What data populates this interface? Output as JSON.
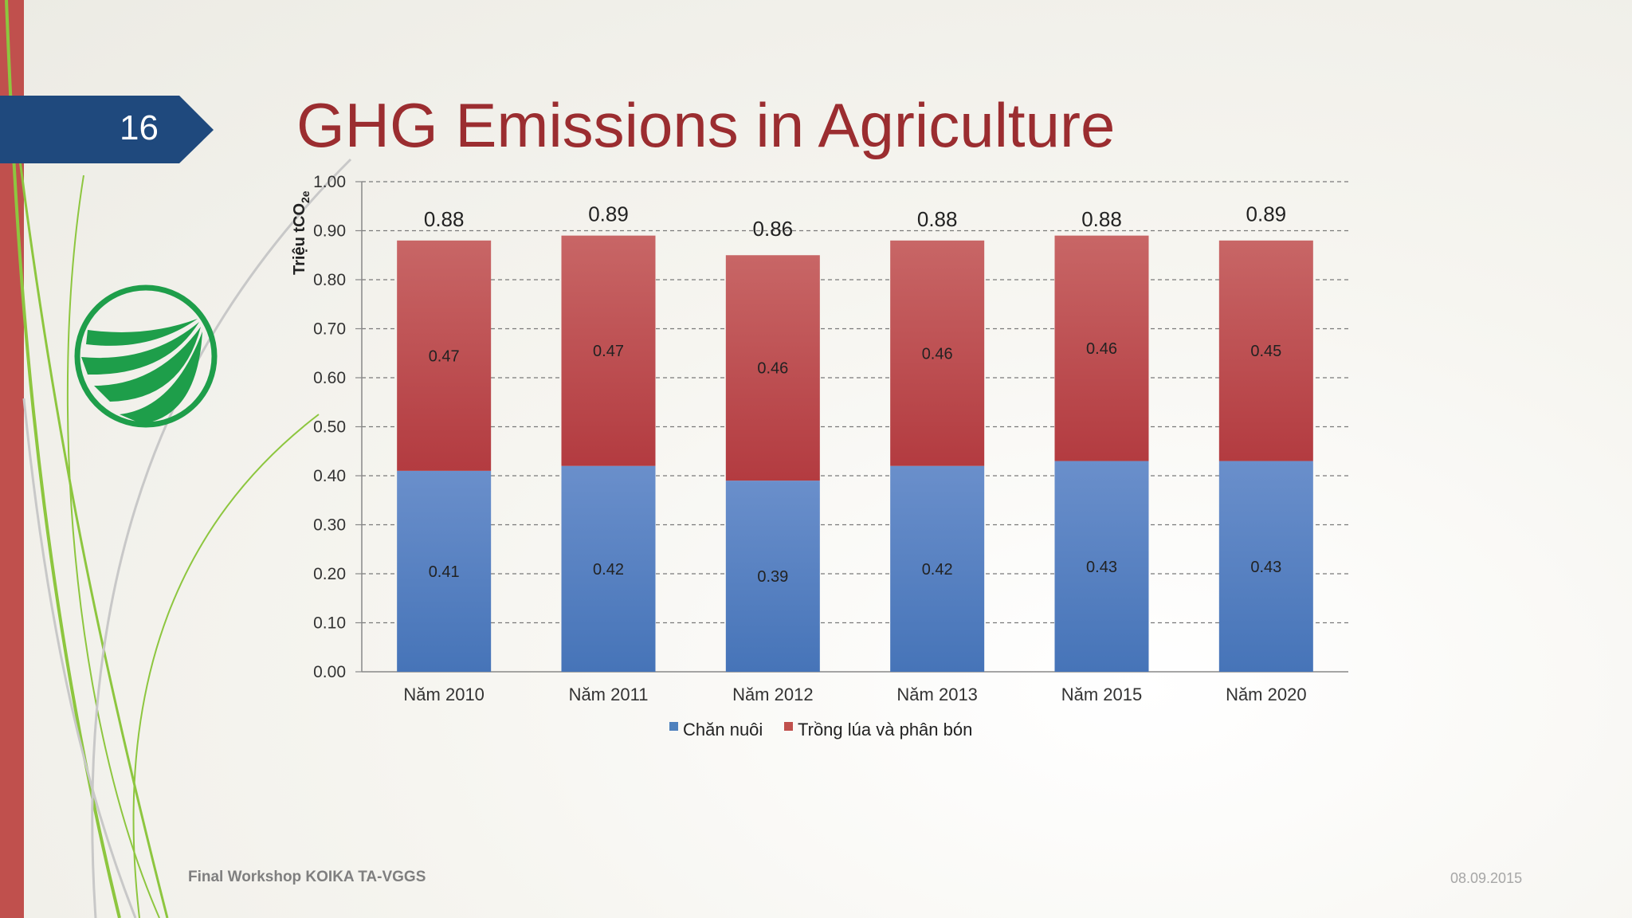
{
  "slide": {
    "number": "16",
    "title": "GHG Emissions in Agriculture",
    "footer_left": "Final Workshop KOIKA TA-VGGS",
    "footer_right": "08.09.2015"
  },
  "colors": {
    "accent_red": "#c0504d",
    "title_color": "#9b2d30",
    "tab_blue": "#1f497d",
    "series_blue": "#4f81bd",
    "series_red": "#c0504d",
    "logo_green": "#1e9e4a"
  },
  "chart_data": {
    "type": "bar",
    "stacked": true,
    "ylabel": "Triệu tCO2e",
    "ylabel_main": "Triệu tCO",
    "ylabel_sub": "2e",
    "ylim": [
      0,
      1.0
    ],
    "ytick_step": 0.1,
    "yticks": [
      "0.00",
      "0.10",
      "0.20",
      "0.30",
      "0.40",
      "0.50",
      "0.60",
      "0.70",
      "0.80",
      "0.90",
      "1.00"
    ],
    "grid": true,
    "legend_position": "bottom",
    "categories": [
      "Năm 2010",
      "Năm 2011",
      "Năm 2012",
      "Năm 2013",
      "Năm 2015",
      "Năm 2020"
    ],
    "series": [
      {
        "name": "Chăn nuôi",
        "values": [
          0.41,
          0.42,
          0.39,
          0.42,
          0.43,
          0.43
        ],
        "labels": [
          "0.41",
          "0.42",
          "0.39",
          "0.42",
          "0.43",
          "0.43"
        ]
      },
      {
        "name": "Trồng lúa và phân bón",
        "values": [
          0.47,
          0.47,
          0.46,
          0.46,
          0.46,
          0.45
        ],
        "labels": [
          "0.47",
          "0.47",
          "0.46",
          "0.46",
          "0.46",
          "0.45"
        ]
      }
    ],
    "totals": [
      0.88,
      0.89,
      0.86,
      0.88,
      0.88,
      0.89
    ],
    "total_labels": [
      "0.88",
      "0.89",
      "0.86",
      "0.88",
      "0.88",
      "0.89"
    ]
  }
}
